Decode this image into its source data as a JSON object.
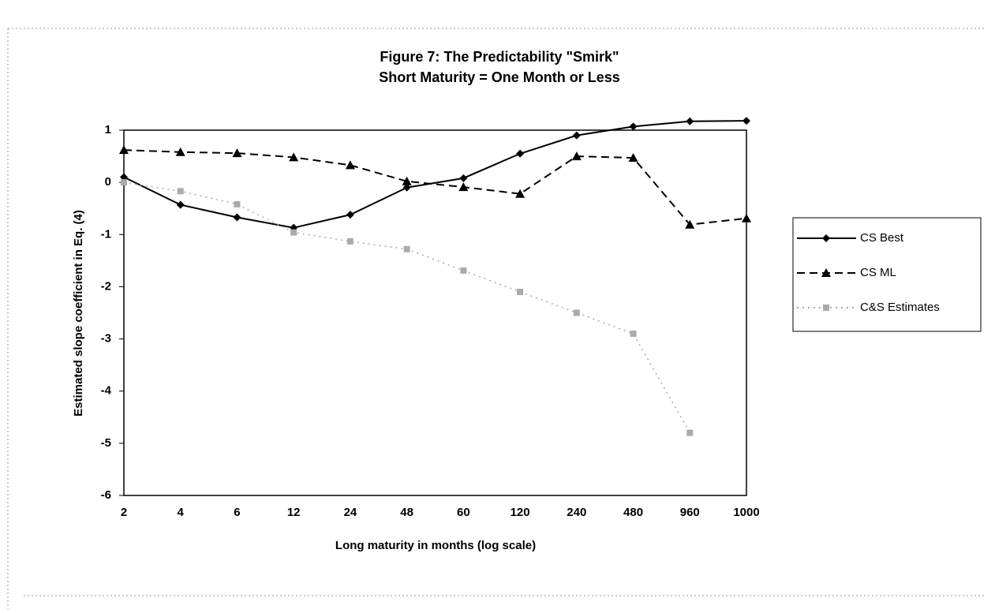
{
  "chart_data": {
    "type": "line",
    "title": "Figure 7:  The Predictability \"Smirk\"",
    "subtitle": "Short Maturity = One Month or Less",
    "x_label": "Long maturity in months (log scale)",
    "y_label": "Estimated slope coefficient in Eq. (4)",
    "categories": [
      "2",
      "4",
      "6",
      "12",
      "24",
      "48",
      "60",
      "120",
      "240",
      "480",
      "960",
      "1000"
    ],
    "series": [
      {
        "name": "CS Best",
        "color": "#000000",
        "line_style": "solid",
        "marker": "diamond",
        "values": [
          0.1,
          -0.43,
          -0.67,
          -0.87,
          -0.62,
          -0.1,
          0.08,
          0.55,
          0.9,
          1.07,
          1.17,
          1.18
        ]
      },
      {
        "name": "CS ML",
        "color": "#000000",
        "line_style": "dashed",
        "marker": "triangle",
        "values": [
          0.62,
          0.58,
          0.56,
          0.48,
          0.33,
          0.02,
          -0.09,
          -0.22,
          0.5,
          0.47,
          -0.81,
          -0.69
        ]
      },
      {
        "name": "C&S Estimates",
        "color": "#aaaaaa",
        "line_style": "dotted",
        "marker": "square",
        "values": [
          0,
          -0.17,
          -0.42,
          -0.96,
          -1.13,
          -1.28,
          -1.69,
          -2.1,
          -2.5,
          -2.9,
          -4.8,
          null
        ]
      }
    ],
    "ylim": [
      -6,
      1
    ],
    "yticks": [
      -6,
      -5,
      -4,
      -3,
      -2,
      -1,
      0,
      1
    ],
    "legend": "right"
  }
}
